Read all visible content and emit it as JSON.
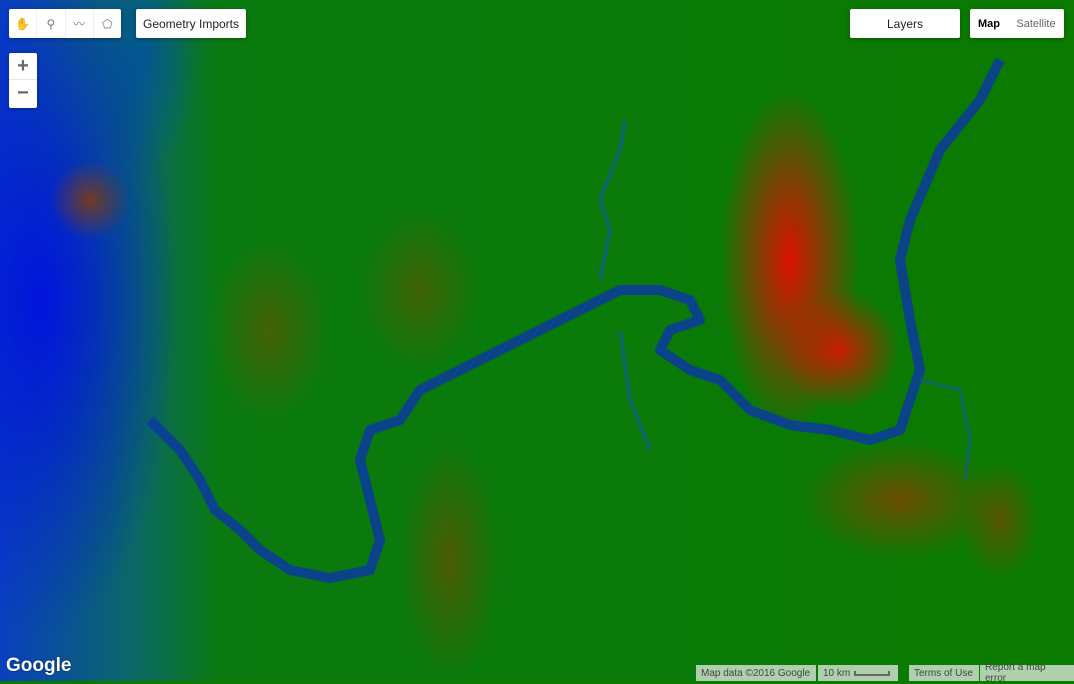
{
  "toolbar": {
    "tools": [
      {
        "name": "pan",
        "icon": "hand-icon"
      },
      {
        "name": "point",
        "icon": "marker-icon"
      },
      {
        "name": "line",
        "icon": "line-icon"
      },
      {
        "name": "polygon",
        "icon": "polygon-icon"
      }
    ],
    "geometry_imports": "Geometry Imports"
  },
  "zoom": {
    "in": "+",
    "out": "−"
  },
  "layers": "Layers",
  "map_type": {
    "options": [
      "Map",
      "Satellite"
    ],
    "selected": "Map"
  },
  "logo": "Google",
  "footer": {
    "map_data": "Map data ©2016 Google",
    "scale": "10 km",
    "terms": "Terms of Use",
    "report": "Report a map error"
  },
  "colors": {
    "low": "#0000ff",
    "mid": "#008000",
    "high": "#ff0000"
  }
}
